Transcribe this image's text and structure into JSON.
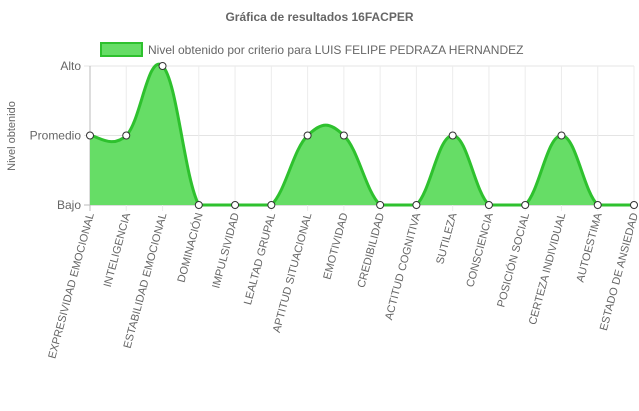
{
  "chart_data": {
    "type": "area",
    "title": "Gráfica de resultados 16FACPER",
    "ylabel": "Nivel obtenido",
    "xlabel": "",
    "y_tick_labels": [
      "Bajo",
      "Promedio",
      "Alto"
    ],
    "ylim": [
      0,
      2
    ],
    "legend_position": "top",
    "grid": true,
    "categories": [
      "EXPRESIVIDAD EMOCIONAL",
      "INTELIGENCIA",
      "ESTABILIDAD EMOCIONAL",
      "DOMINACIÓN",
      "IMPULSIVIDAD",
      "LEALTAD GRUPAL",
      "APTITUD SITUACIONAL",
      "EMOTIVIDAD",
      "CREDIBILIDAD",
      "ACTITUD COGNITIVA",
      "SUTILEZA",
      "CONSCIENCIA",
      "POSICIÓN SOCIAL",
      "CERTEZA INDIVIDUAL",
      "AUTOESTIMA",
      "ESTADO DE ANSIEDAD"
    ],
    "series": [
      {
        "name": "Nivel obtenido por criterio para LUIS FELIPE PEDRAZA HERNANDEZ",
        "values": [
          1,
          1,
          2,
          0,
          0,
          0,
          1,
          1,
          0,
          0,
          1,
          0,
          0,
          1,
          0,
          0
        ],
        "line_color": "#2ec12e",
        "fill_color": "#66dd66"
      }
    ]
  }
}
